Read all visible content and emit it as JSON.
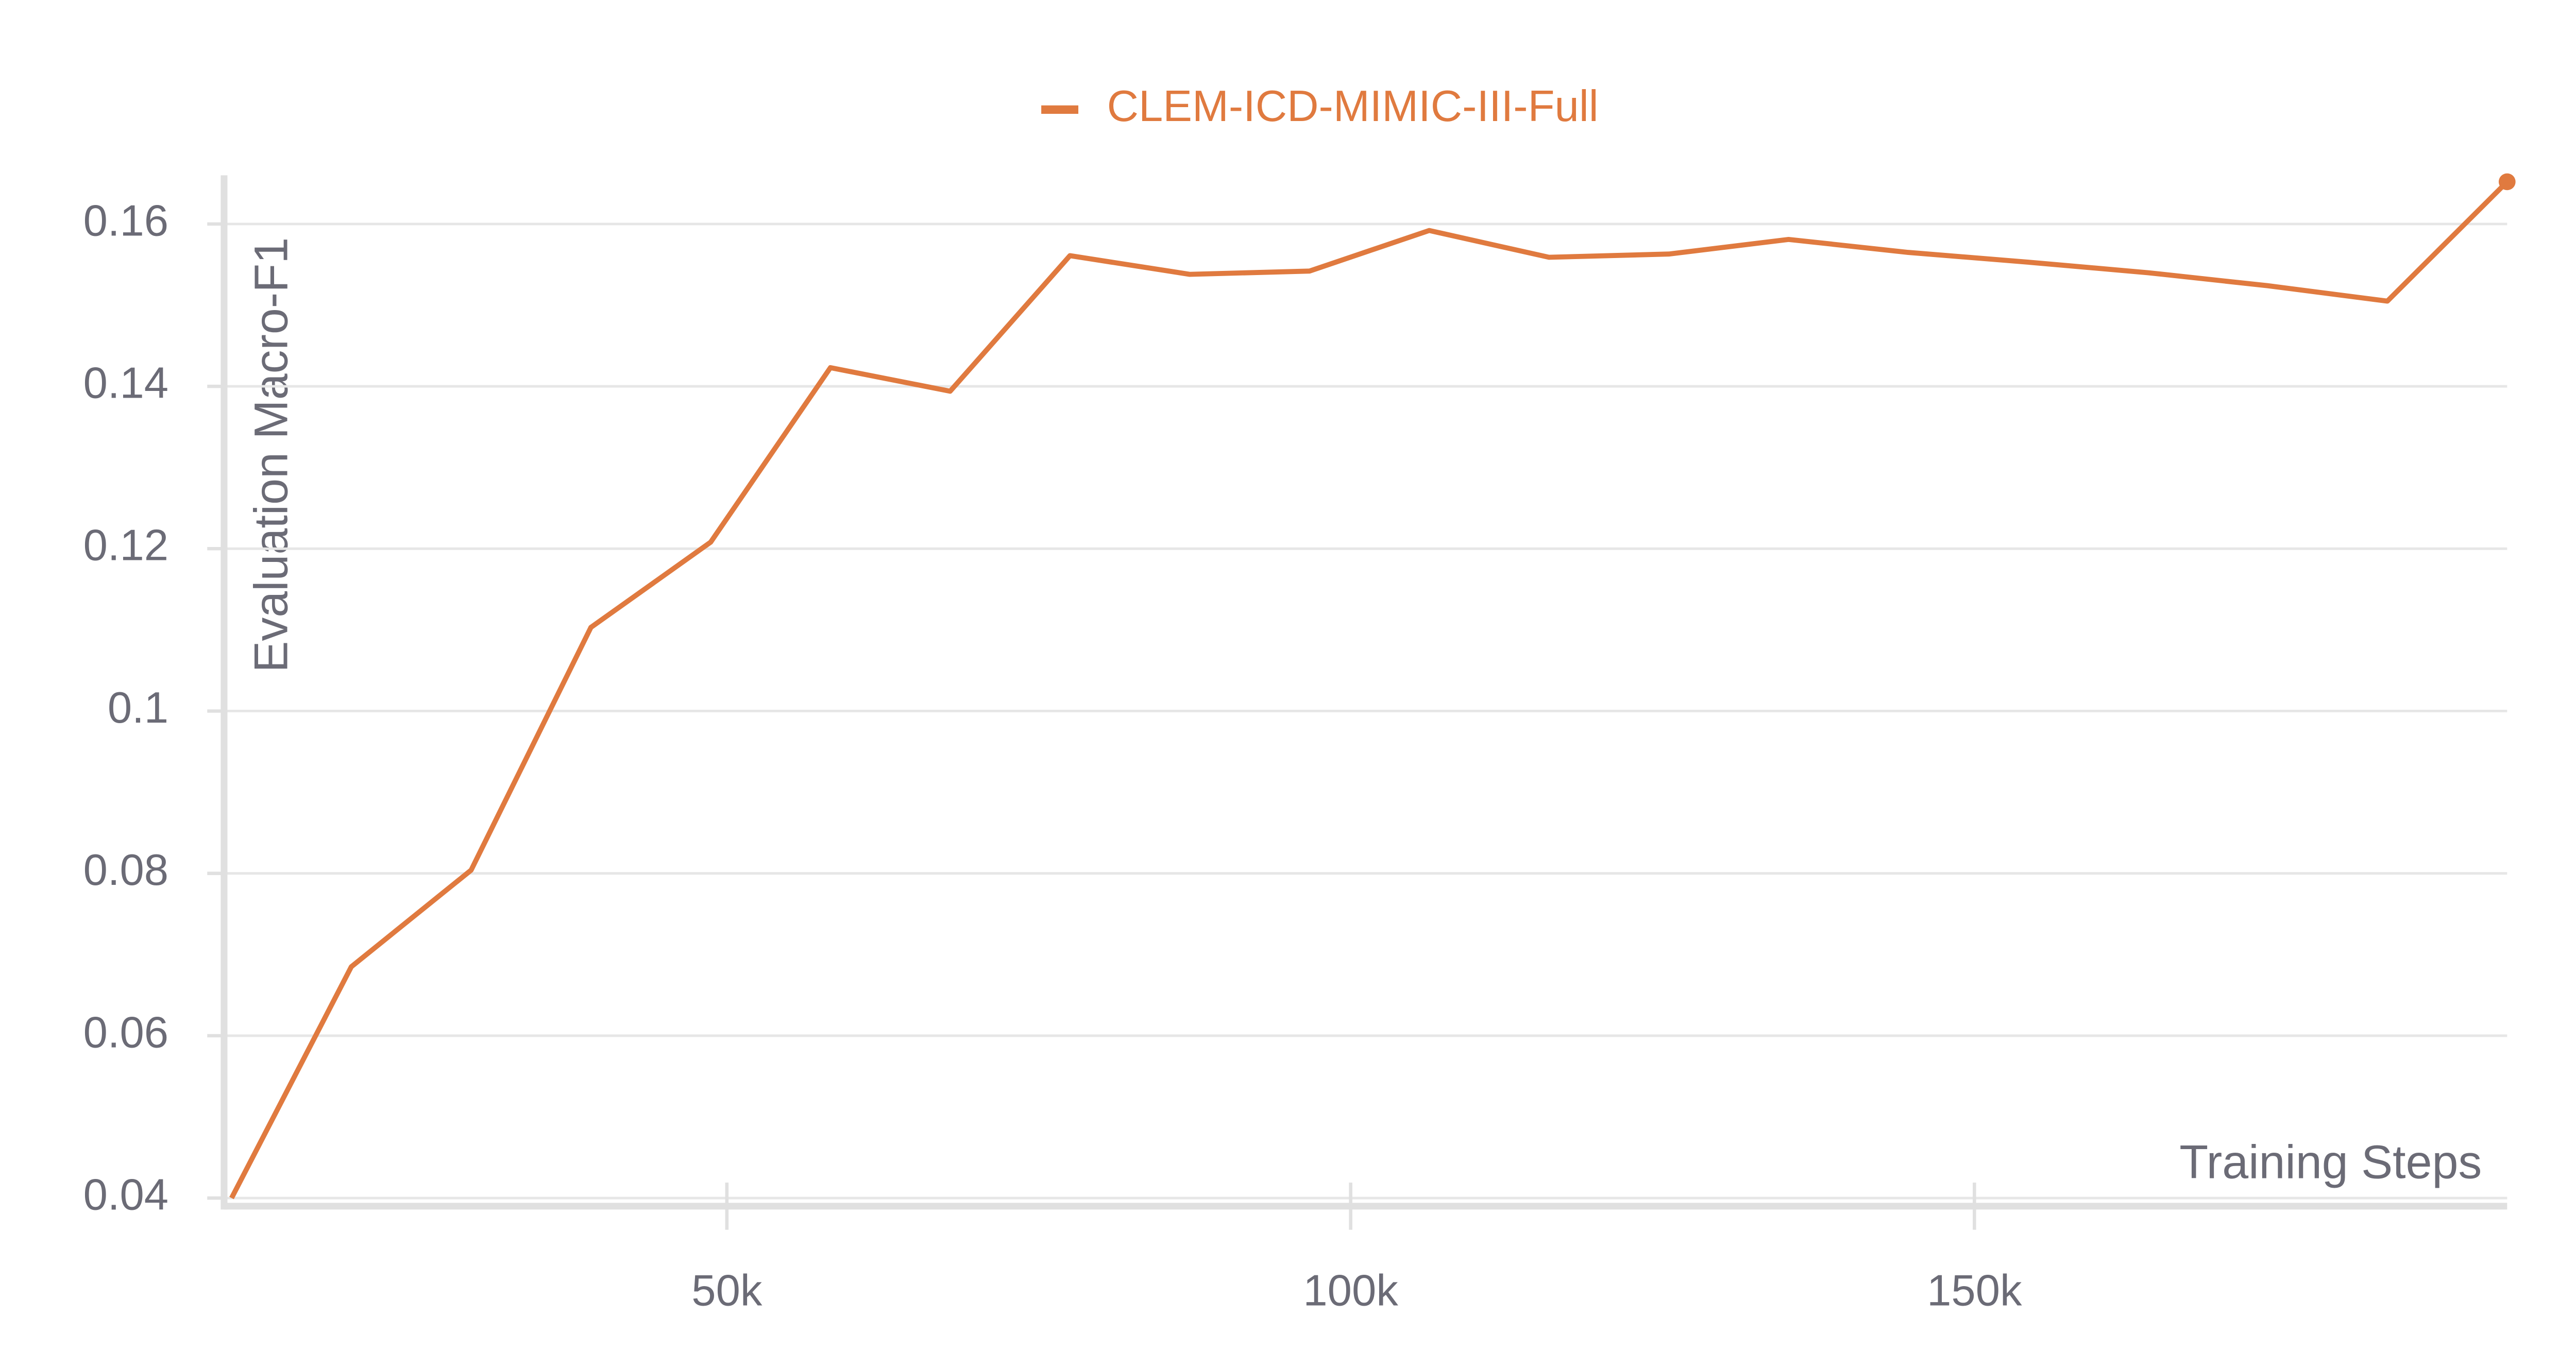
{
  "chart_data": {
    "type": "line",
    "ylabel": "Evaluation Macro-F1",
    "xlabel": "Training Steps",
    "x": [
      10300,
      19900,
      29500,
      39100,
      48700,
      58300,
      67900,
      77500,
      87100,
      96700,
      106300,
      115900,
      125500,
      135100,
      144700,
      154300,
      163900,
      173500,
      183100,
      192700
    ],
    "series": [
      {
        "name": "CLEM-ICD-MIMIC-III-Full",
        "color": "#e07a3f",
        "values": [
          0.04,
          0.0685,
          0.0804,
          0.1103,
          0.1208,
          0.1423,
          0.1394,
          0.1561,
          0.1538,
          0.1542,
          0.1592,
          0.1559,
          0.1563,
          0.1581,
          0.1565,
          0.1553,
          0.154,
          0.1524,
          0.1505,
          0.1652
        ]
      }
    ],
    "xlim": [
      9700,
      192700
    ],
    "ylim": [
      0.039,
      0.166
    ],
    "xticks": [
      {
        "value": 50000,
        "label": "50k"
      },
      {
        "value": 100000,
        "label": "100k"
      },
      {
        "value": 150000,
        "label": "150k"
      }
    ],
    "yticks": [
      0.04,
      0.06,
      0.08,
      0.1,
      0.12,
      0.14,
      0.16
    ],
    "grid": true
  }
}
